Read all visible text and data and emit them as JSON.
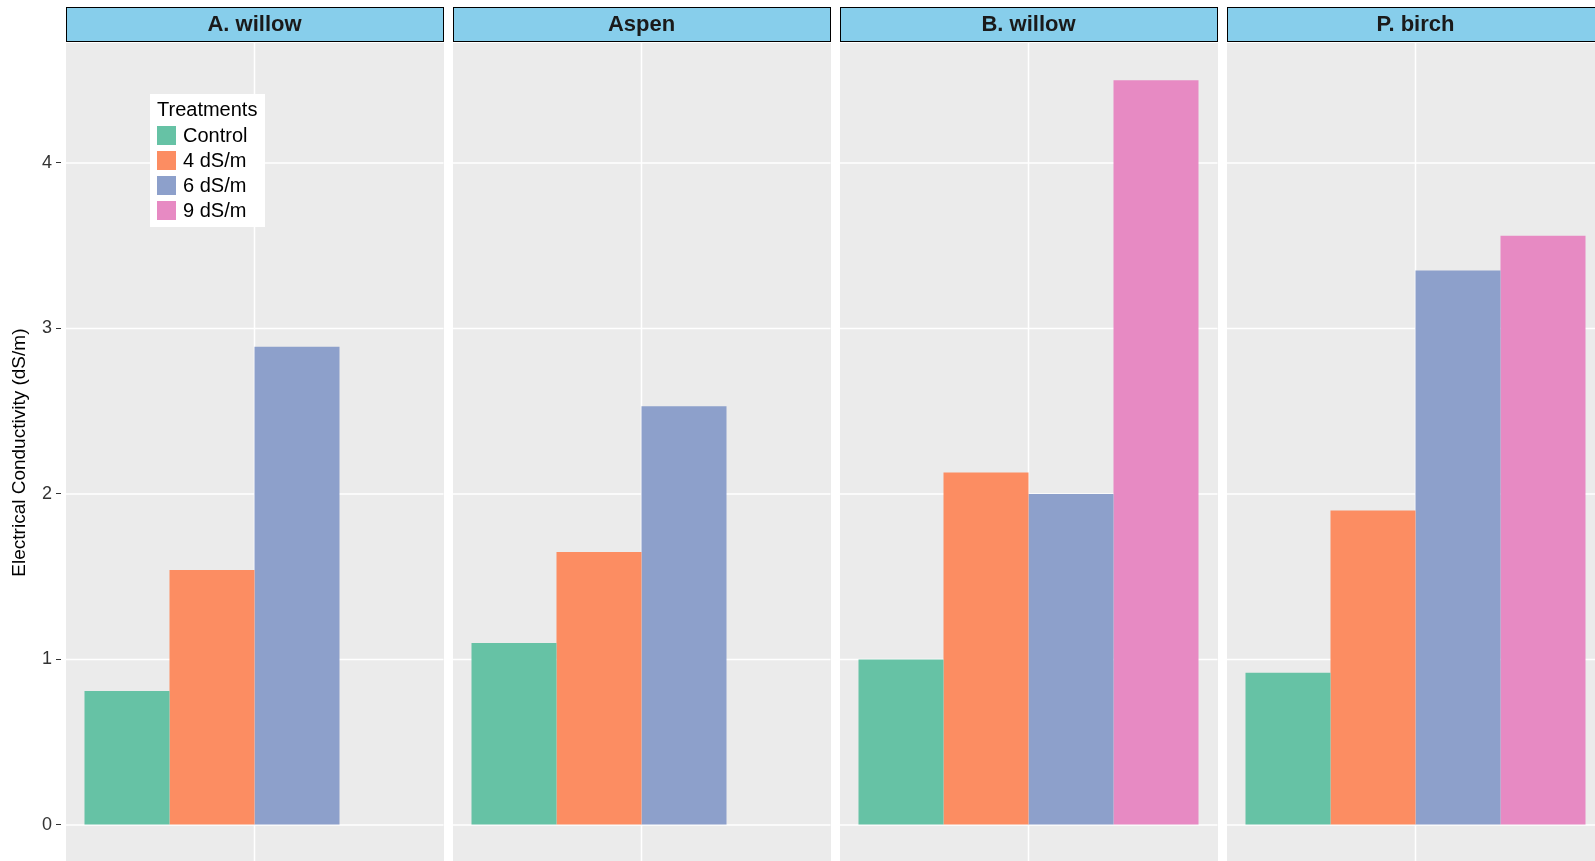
{
  "chart_data": {
    "type": "bar",
    "ylabel": "Electrical Conductivity (dS/m)",
    "legend_title": "Treatments",
    "legend": "top left",
    "categories": [
      "A. willow",
      "Aspen",
      "B. willow",
      "P. birch"
    ],
    "series": [
      {
        "name": "Control",
        "color": "#66c2a5",
        "values": [
          0.81,
          1.1,
          1.0,
          0.92
        ]
      },
      {
        "name": "4 dS/m",
        "color": "#fc8d62",
        "values": [
          1.54,
          1.65,
          2.13,
          1.9
        ]
      },
      {
        "name": "6 dS/m",
        "color": "#8da0cb",
        "values": [
          2.89,
          2.53,
          2.0,
          3.35
        ]
      },
      {
        "name": "9 dS/m",
        "color": "#e78ac3",
        "values": [
          null,
          null,
          4.5,
          3.56
        ]
      }
    ],
    "ylim": [
      -0.225,
      4.725
    ],
    "yticks": [
      0,
      1,
      2,
      3,
      4
    ],
    "grid": true
  }
}
